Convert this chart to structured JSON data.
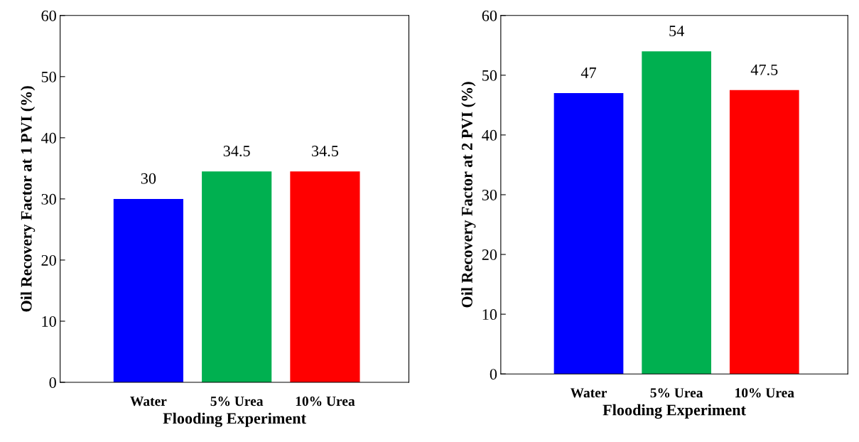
{
  "chart_data": [
    {
      "type": "bar",
      "xlabel": "Flooding Experiment",
      "ylabel": "Oil Recovery Factor at 1 PVI (%)",
      "categories": [
        "Water",
        "5% Urea",
        "10% Urea"
      ],
      "values": [
        30,
        34.5,
        34.5
      ],
      "colors": [
        "#0000ff",
        "#00b050",
        "#ff0000"
      ],
      "ylim": [
        0,
        60
      ],
      "yticks": [
        0,
        10,
        20,
        30,
        40,
        50,
        60
      ],
      "data_labels": true,
      "grid": false
    },
    {
      "type": "bar",
      "xlabel": "Flooding Experiment",
      "ylabel": "Oil Recovery Factor at 2 PVI (%)",
      "categories": [
        "Water",
        "5% Urea",
        "10% Urea"
      ],
      "values": [
        47,
        54,
        47.5
      ],
      "colors": [
        "#0000ff",
        "#00b050",
        "#ff0000"
      ],
      "ylim": [
        0,
        60
      ],
      "yticks": [
        0,
        10,
        20,
        30,
        40,
        50,
        60
      ],
      "data_labels": true,
      "grid": false
    }
  ]
}
